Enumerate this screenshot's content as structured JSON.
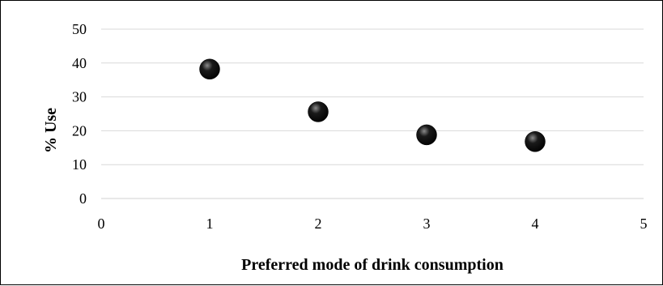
{
  "chart_data": {
    "type": "scatter",
    "title": "",
    "xlabel": "Preferred mode of drink consumption",
    "ylabel": "% Use",
    "xlim": [
      0,
      5
    ],
    "ylim": [
      0,
      50
    ],
    "x_ticks": [
      "0",
      "1",
      "2",
      "3",
      "4",
      "5"
    ],
    "y_ticks": [
      "0",
      "10",
      "20",
      "30",
      "40",
      "50"
    ],
    "grid": "horizontal",
    "legend": "none",
    "series": [
      {
        "x": [
          1,
          2,
          3,
          4
        ],
        "y": [
          38.2,
          25.6,
          18.8,
          16.8
        ]
      }
    ],
    "marker_color": "#000000",
    "gridline_color": "#d9d9d9"
  }
}
